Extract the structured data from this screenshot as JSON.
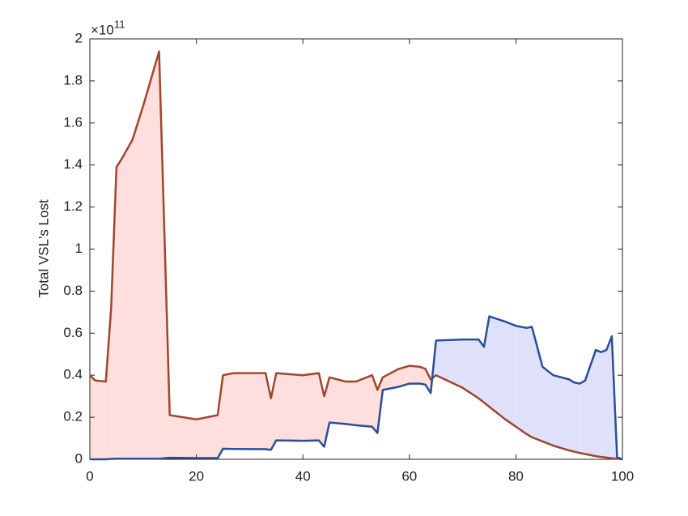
{
  "chart_data": {
    "type": "line",
    "y_label": "Total VSL's Lost",
    "y_exponent_base": "×10",
    "y_exponent": "11",
    "x": [
      0,
      1,
      3,
      4,
      5,
      6,
      8,
      10,
      13,
      15,
      20,
      22,
      24,
      25,
      27,
      33,
      34,
      35,
      40,
      43,
      44,
      45,
      48,
      50,
      53,
      54,
      55,
      58,
      60,
      62,
      63,
      64,
      65,
      70,
      73,
      74,
      75,
      78,
      80,
      82,
      83,
      85,
      87,
      90,
      91,
      92,
      93,
      95,
      96,
      97,
      98,
      99,
      100
    ],
    "series": [
      {
        "color": "#a0452e",
        "fill": "#ffdede",
        "values": [
          0.4,
          0.375,
          0.37,
          0.72,
          1.39,
          1.43,
          1.52,
          1.68,
          1.94,
          0.21,
          0.19,
          0.2,
          0.21,
          0.4,
          0.41,
          0.41,
          0.29,
          0.41,
          0.4,
          0.41,
          0.3,
          0.39,
          0.37,
          0.37,
          0.4,
          0.33,
          0.39,
          0.43,
          0.445,
          0.44,
          0.43,
          0.38,
          0.4,
          0.34,
          0.29,
          0.27,
          0.25,
          0.19,
          0.155,
          0.12,
          0.105,
          0.085,
          0.065,
          0.042,
          0.036,
          0.03,
          0.025,
          0.015,
          0.011,
          0.008,
          0.005,
          0.003,
          0
        ]
      },
      {
        "color": "#2a4e96",
        "fill": "#dfe0fa",
        "values": [
          0,
          0,
          0,
          0.002,
          0.003,
          0.003,
          0.003,
          0.003,
          0.003,
          0.007,
          0.006,
          0.006,
          0.006,
          0.05,
          0.049,
          0.048,
          0.045,
          0.09,
          0.088,
          0.09,
          0.06,
          0.175,
          0.168,
          0.162,
          0.155,
          0.125,
          0.33,
          0.345,
          0.36,
          0.36,
          0.355,
          0.315,
          0.565,
          0.57,
          0.57,
          0.535,
          0.68,
          0.655,
          0.635,
          0.625,
          0.63,
          0.44,
          0.4,
          0.38,
          0.365,
          0.36,
          0.375,
          0.52,
          0.51,
          0.52,
          0.585,
          0.01,
          0
        ]
      }
    ],
    "xlim": [
      0,
      100
    ],
    "xticks": [
      0,
      20,
      40,
      60,
      80,
      100
    ],
    "ylim": [
      0,
      2
    ],
    "yticks": [
      0,
      0.2,
      0.4,
      0.6,
      0.8,
      1,
      1.2,
      1.4,
      1.6,
      1.8,
      2
    ]
  }
}
